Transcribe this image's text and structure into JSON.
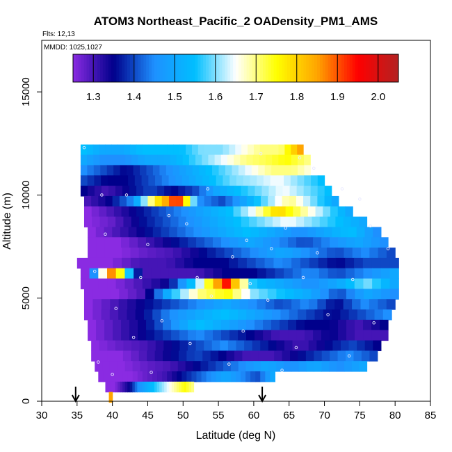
{
  "chart_data": {
    "type": "heatmap",
    "title": "ATOM3 Northeast_Pacific_2 OADensity_PM1_AMS",
    "flights_label": "Flts: 12,13",
    "date_label": "MMDD: 1025,1027",
    "xlabel": "Latitude (deg N)",
    "ylabel": "Altitude (m)",
    "xlim": [
      30,
      85
    ],
    "ylim": [
      0,
      17500
    ],
    "xticks": [
      "30",
      "35",
      "40",
      "45",
      "50",
      "55",
      "60",
      "65",
      "70",
      "75",
      "80",
      "85"
    ],
    "yticks": [
      "0",
      "5000",
      "10000",
      "15000"
    ],
    "colorbar": {
      "range": [
        1.25,
        2.05
      ],
      "ticks": [
        "1.3",
        "1.4",
        "1.5",
        "1.6",
        "1.7",
        "1.8",
        "1.9",
        "2.0"
      ],
      "colors": [
        "#8a2be2",
        "#00008b",
        "#1e90ff",
        "#00bfff",
        "#ffffff",
        "#ffff00",
        "#ffa500",
        "#ff0000",
        "#b22222"
      ]
    },
    "arrows_at_latitude": [
      34.8,
      61.2
    ],
    "rows": [
      {
        "alt": 12200,
        "lat_min": 35.5,
        "lat_max": 67.0,
        "values": [
          1.55,
          1.5,
          1.5,
          1.55,
          1.55,
          1.55,
          1.6,
          1.6,
          1.65,
          1.7,
          1.7,
          1.85
        ]
      },
      {
        "alt": 11700,
        "lat_min": 35.5,
        "lat_max": 68.0,
        "values": [
          1.5,
          1.45,
          1.45,
          1.5,
          1.5,
          1.55,
          1.6,
          1.65,
          1.7,
          1.72,
          1.75,
          1.7
        ]
      },
      {
        "alt": 11200,
        "lat_min": 35.5,
        "lat_max": 69.0,
        "values": [
          1.45,
          1.4,
          1.35,
          1.4,
          1.45,
          1.5,
          1.55,
          1.6,
          1.65,
          1.7,
          1.7,
          1.65
        ]
      },
      {
        "alt": 10700,
        "lat_min": 35.5,
        "lat_max": 70.0,
        "values": [
          1.4,
          1.35,
          1.35,
          1.4,
          1.45,
          1.5,
          1.55,
          1.6,
          1.62,
          1.65,
          1.6,
          1.55
        ]
      },
      {
        "alt": 10200,
        "lat_min": 35.5,
        "lat_max": 71.0,
        "values": [
          1.35,
          1.3,
          1.35,
          1.4,
          1.35,
          1.4,
          1.5,
          1.55,
          1.6,
          1.65,
          1.6,
          1.55
        ]
      },
      {
        "alt": 9700,
        "lat_min": 36.0,
        "lat_max": 72.0,
        "values": [
          1.3,
          1.35,
          1.45,
          1.75,
          1.95,
          1.45,
          1.4,
          1.5,
          1.6,
          1.7,
          1.6,
          1.5
        ]
      },
      {
        "alt": 9200,
        "lat_min": 36.0,
        "lat_max": 74.0,
        "values": [
          1.25,
          1.3,
          1.35,
          1.4,
          1.45,
          1.5,
          1.55,
          1.65,
          1.8,
          1.7,
          1.6,
          1.5
        ]
      },
      {
        "alt": 8700,
        "lat_min": 36.0,
        "lat_max": 76.0,
        "values": [
          1.25,
          1.28,
          1.35,
          1.4,
          1.45,
          1.5,
          1.55,
          1.6,
          1.65,
          1.6,
          1.55,
          1.5
        ]
      },
      {
        "alt": 8200,
        "lat_min": 36.5,
        "lat_max": 78.0,
        "values": [
          1.25,
          1.3,
          1.35,
          1.4,
          1.45,
          1.5,
          1.55,
          1.5,
          1.45,
          1.5,
          1.55,
          1.45
        ]
      },
      {
        "alt": 7700,
        "lat_min": 36.5,
        "lat_max": 79.0,
        "values": [
          1.25,
          1.25,
          1.3,
          1.35,
          1.4,
          1.45,
          1.5,
          1.45,
          1.4,
          1.45,
          1.5,
          1.45
        ]
      },
      {
        "alt": 7200,
        "lat_min": 36.5,
        "lat_max": 80.0,
        "values": [
          1.25,
          1.25,
          1.28,
          1.3,
          1.35,
          1.4,
          1.45,
          1.5,
          1.45,
          1.4,
          1.45,
          1.4
        ]
      },
      {
        "alt": 6700,
        "lat_min": 35.0,
        "lat_max": 80.5,
        "values": [
          1.25,
          1.25,
          1.3,
          1.3,
          1.35,
          1.35,
          1.4,
          1.45,
          1.4,
          1.35,
          1.4,
          1.4
        ]
      },
      {
        "alt": 6200,
        "lat_min": 35.5,
        "lat_max": 80.5,
        "values": [
          1.25,
          1.9,
          1.3,
          1.3,
          1.3,
          1.35,
          1.35,
          1.4,
          1.45,
          1.4,
          1.45,
          1.5
        ]
      },
      {
        "alt": 5700,
        "lat_min": 35.5,
        "lat_max": 80.5,
        "values": [
          1.25,
          1.25,
          1.3,
          1.35,
          1.6,
          1.95,
          1.55,
          1.5,
          1.45,
          1.5,
          1.6,
          1.5
        ]
      },
      {
        "alt": 5200,
        "lat_min": 36.0,
        "lat_max": 80.5,
        "values": [
          1.25,
          1.25,
          1.3,
          1.55,
          1.7,
          1.75,
          1.6,
          1.55,
          1.5,
          1.4,
          1.5,
          1.45
        ]
      },
      {
        "alt": 4700,
        "lat_min": 36.0,
        "lat_max": 80.0,
        "values": [
          1.25,
          1.3,
          1.35,
          1.4,
          1.45,
          1.5,
          1.45,
          1.4,
          1.45,
          1.35,
          1.45,
          1.4
        ]
      },
      {
        "alt": 4200,
        "lat_min": 36.0,
        "lat_max": 79.5,
        "values": [
          1.25,
          1.3,
          1.35,
          1.45,
          1.5,
          1.55,
          1.5,
          1.45,
          1.4,
          1.35,
          1.4,
          1.45
        ]
      },
      {
        "alt": 3700,
        "lat_min": 36.5,
        "lat_max": 79.0,
        "values": [
          1.25,
          1.3,
          1.35,
          1.45,
          1.55,
          1.5,
          1.45,
          1.4,
          1.35,
          1.35,
          1.3,
          1.35
        ]
      },
      {
        "alt": 3200,
        "lat_min": 36.5,
        "lat_max": 79.0,
        "values": [
          1.25,
          1.3,
          1.35,
          1.4,
          1.45,
          1.4,
          1.35,
          1.3,
          1.3,
          1.35,
          1.3,
          1.3
        ]
      },
      {
        "alt": 2700,
        "lat_min": 37.0,
        "lat_max": 78.0,
        "values": [
          1.25,
          1.28,
          1.3,
          1.35,
          1.4,
          1.45,
          1.4,
          1.35,
          1.3,
          1.35,
          1.4,
          1.35
        ]
      },
      {
        "alt": 2200,
        "lat_min": 37.0,
        "lat_max": 77.5,
        "values": [
          1.25,
          1.25,
          1.3,
          1.35,
          1.4,
          1.35,
          1.3,
          1.3,
          1.35,
          1.4,
          1.45,
          1.4
        ]
      },
      {
        "alt": 1700,
        "lat_min": 37.5,
        "lat_max": 76.0,
        "values": [
          1.25,
          1.25,
          1.28,
          1.3,
          1.35,
          1.4,
          1.45,
          1.5,
          1.45,
          1.5,
          1.45,
          1.5
        ]
      },
      {
        "alt": 1200,
        "lat_min": 38.0,
        "lat_max": 63.0,
        "values": [
          1.25,
          1.25,
          1.25,
          1.28,
          1.3,
          1.35,
          1.4,
          1.45,
          1.5,
          1.45,
          1.4,
          1.5
        ]
      },
      {
        "alt": 700,
        "lat_min": 39.0,
        "lat_max": 51.5,
        "values": [
          1.25,
          1.25,
          1.3,
          1.35,
          1.45,
          1.5,
          1.55,
          1.6,
          1.65,
          1.7,
          1.75,
          1.7
        ]
      },
      {
        "alt": 200,
        "lat_min": 39.5,
        "lat_max": 40.0,
        "values": [
          1.85
        ]
      }
    ],
    "samples": [
      {
        "lat": 36.0,
        "alt": 12300
      },
      {
        "lat": 38.5,
        "alt": 10000
      },
      {
        "lat": 42.0,
        "alt": 10000
      },
      {
        "lat": 53.5,
        "alt": 10300
      },
      {
        "lat": 48.0,
        "alt": 9000
      },
      {
        "lat": 59.0,
        "alt": 7800
      },
      {
        "lat": 64.5,
        "alt": 8400
      },
      {
        "lat": 72.5,
        "alt": 10300
      },
      {
        "lat": 76.5,
        "alt": 8500
      },
      {
        "lat": 39.0,
        "alt": 8100
      },
      {
        "lat": 45.0,
        "alt": 7600
      },
      {
        "lat": 50.5,
        "alt": 8600
      },
      {
        "lat": 57.0,
        "alt": 7000
      },
      {
        "lat": 62.5,
        "alt": 7400
      },
      {
        "lat": 69.0,
        "alt": 7200
      },
      {
        "lat": 79.0,
        "alt": 7400
      },
      {
        "lat": 37.5,
        "alt": 6300
      },
      {
        "lat": 44.0,
        "alt": 6000
      },
      {
        "lat": 52.0,
        "alt": 6000
      },
      {
        "lat": 59.5,
        "alt": 5700
      },
      {
        "lat": 67.0,
        "alt": 6000
      },
      {
        "lat": 74.0,
        "alt": 5900
      },
      {
        "lat": 40.5,
        "alt": 4500
      },
      {
        "lat": 47.0,
        "alt": 3900
      },
      {
        "lat": 54.0,
        "alt": 5100
      },
      {
        "lat": 62.0,
        "alt": 4900
      },
      {
        "lat": 70.5,
        "alt": 4200
      },
      {
        "lat": 77.0,
        "alt": 3800
      },
      {
        "lat": 43.0,
        "alt": 3100
      },
      {
        "lat": 51.0,
        "alt": 2800
      },
      {
        "lat": 58.5,
        "alt": 3400
      },
      {
        "lat": 66.0,
        "alt": 2600
      },
      {
        "lat": 73.5,
        "alt": 2200
      },
      {
        "lat": 38.0,
        "alt": 1900
      },
      {
        "lat": 45.5,
        "alt": 1400
      },
      {
        "lat": 56.5,
        "alt": 1800
      },
      {
        "lat": 64.0,
        "alt": 1500
      },
      {
        "lat": 40.0,
        "alt": 1300
      },
      {
        "lat": 61.0,
        "alt": 12000
      },
      {
        "lat": 66.5,
        "alt": 11800
      },
      {
        "lat": 68.5,
        "alt": 11300
      },
      {
        "lat": 75.0,
        "alt": 9800
      }
    ]
  }
}
